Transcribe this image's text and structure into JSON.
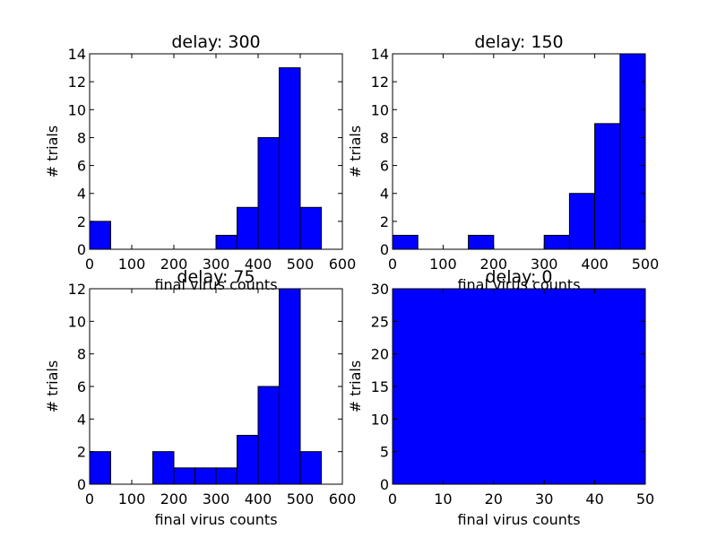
{
  "chart_data": [
    {
      "type": "bar",
      "title": "delay: 300",
      "xlabel": "final virus counts",
      "ylabel": "# trials",
      "xlim": [
        0,
        600
      ],
      "ylim": [
        0,
        14
      ],
      "xticks": [
        0,
        100,
        200,
        300,
        400,
        500,
        600
      ],
      "yticks": [
        0,
        2,
        4,
        6,
        8,
        10,
        12,
        14
      ],
      "bins": [
        {
          "x0": 0,
          "x1": 50,
          "count": 2
        },
        {
          "x0": 300,
          "x1": 350,
          "count": 1
        },
        {
          "x0": 350,
          "x1": 400,
          "count": 3
        },
        {
          "x0": 400,
          "x1": 450,
          "count": 8
        },
        {
          "x0": 450,
          "x1": 500,
          "count": 13
        },
        {
          "x0": 500,
          "x1": 550,
          "count": 3
        }
      ],
      "bar_color": "#0000ff"
    },
    {
      "type": "bar",
      "title": "delay: 150",
      "xlabel": "final virus counts",
      "ylabel": "# trials",
      "xlim": [
        0,
        500
      ],
      "ylim": [
        0,
        14
      ],
      "xticks": [
        0,
        100,
        200,
        300,
        400,
        500
      ],
      "yticks": [
        0,
        2,
        4,
        6,
        8,
        10,
        12,
        14
      ],
      "bins": [
        {
          "x0": 0,
          "x1": 50,
          "count": 1
        },
        {
          "x0": 150,
          "x1": 200,
          "count": 1
        },
        {
          "x0": 300,
          "x1": 350,
          "count": 1
        },
        {
          "x0": 350,
          "x1": 400,
          "count": 4
        },
        {
          "x0": 400,
          "x1": 450,
          "count": 9
        },
        {
          "x0": 450,
          "x1": 500,
          "count": 14
        }
      ],
      "bar_color": "#0000ff"
    },
    {
      "type": "bar",
      "title": "delay: 75",
      "xlabel": "final virus counts",
      "ylabel": "# trials",
      "xlim": [
        0,
        600
      ],
      "ylim": [
        0,
        12
      ],
      "xticks": [
        0,
        100,
        200,
        300,
        400,
        500,
        600
      ],
      "yticks": [
        0,
        2,
        4,
        6,
        8,
        10,
        12
      ],
      "bins": [
        {
          "x0": 0,
          "x1": 50,
          "count": 2
        },
        {
          "x0": 150,
          "x1": 200,
          "count": 2
        },
        {
          "x0": 200,
          "x1": 250,
          "count": 1
        },
        {
          "x0": 250,
          "x1": 300,
          "count": 1
        },
        {
          "x0": 300,
          "x1": 350,
          "count": 1
        },
        {
          "x0": 350,
          "x1": 400,
          "count": 3
        },
        {
          "x0": 400,
          "x1": 450,
          "count": 6
        },
        {
          "x0": 450,
          "x1": 500,
          "count": 12
        },
        {
          "x0": 500,
          "x1": 550,
          "count": 2
        }
      ],
      "bar_color": "#0000ff"
    },
    {
      "type": "bar",
      "title": "delay: 0",
      "xlabel": "final virus counts",
      "ylabel": "# trials",
      "xlim": [
        0,
        50
      ],
      "ylim": [
        0,
        30
      ],
      "xticks": [
        0,
        10,
        20,
        30,
        40,
        50
      ],
      "yticks": [
        0,
        5,
        10,
        15,
        20,
        25,
        30
      ],
      "bins": [
        {
          "x0": 0,
          "x1": 50,
          "count": 30
        }
      ],
      "bar_color": "#0000ff"
    }
  ]
}
